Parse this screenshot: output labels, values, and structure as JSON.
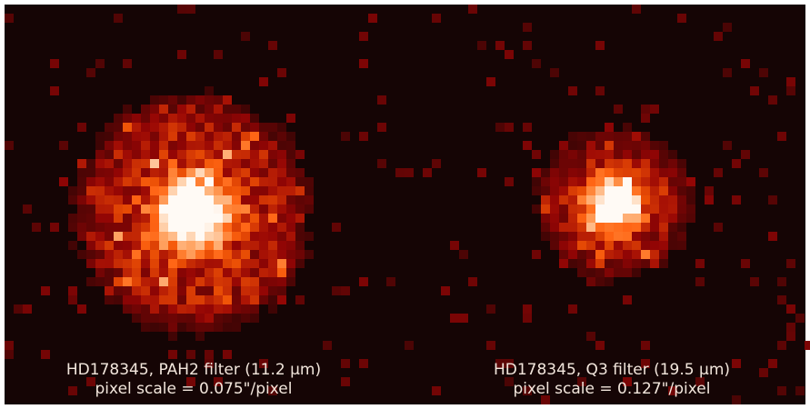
{
  "panels": [
    {
      "caption": [
        "HD178345, PAH2 filter (11.2 μm)",
        "pixel scale = 0.075\"/pixel"
      ]
    },
    {
      "caption": [
        "HD178345, Q3 filter (19.5 μm)",
        "pixel scale = 0.127\"/pixel"
      ]
    }
  ]
}
